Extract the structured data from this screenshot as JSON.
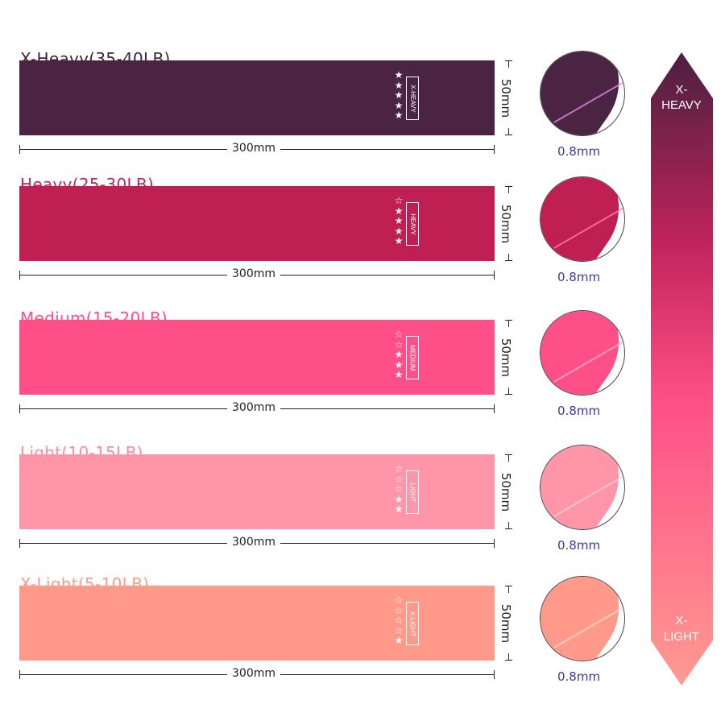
{
  "bands": [
    {
      "title": "X-Heavy(35-40LB)",
      "tag": "X-HEAVY",
      "stars_filled": 5,
      "stars_total": 5,
      "length": "300mm",
      "width": "50mm",
      "thickness": "0.8mm",
      "color": "#4a2442",
      "title_color": "#3d2238",
      "edge_color": "#e08ae0"
    },
    {
      "title": "Heavy(25-30LB)",
      "tag": "HEAVY",
      "stars_filled": 4,
      "stars_total": 5,
      "length": "300mm",
      "width": "50mm",
      "thickness": "0.8mm",
      "color": "#c01f53",
      "title_color": "#c0245a",
      "edge_color": "#ff7aa8"
    },
    {
      "title": "Medium(15-20LB)",
      "tag": "MEDIUM",
      "stars_filled": 3,
      "stars_total": 5,
      "length": "300mm",
      "width": "50mm",
      "thickness": "0.8mm",
      "color": "#ff4f88",
      "title_color": "#ff4f88",
      "edge_color": "#ffb0cc"
    },
    {
      "title": "Light(10-15LB)",
      "tag": "LIGHT",
      "stars_filled": 2,
      "stars_total": 5,
      "length": "300mm",
      "width": "50mm",
      "thickness": "0.8mm",
      "color": "#ff95a8",
      "title_color": "#ff8aa0",
      "edge_color": "#ffd0da"
    },
    {
      "title": "X-Light(5-10LB)",
      "tag": "X-LIGHT",
      "stars_filled": 1,
      "stars_total": 5,
      "length": "300mm",
      "width": "50mm",
      "thickness": "0.8mm",
      "color": "#ff9a8b",
      "title_color": "#ff9a88",
      "edge_color": "#ffd6d0"
    }
  ],
  "scale": {
    "top_label": "X-\nHEAVY",
    "top_line1": "X-",
    "top_line2": "HEAVY",
    "bottom_line1": "X-",
    "bottom_line2": "LIGHT",
    "gradient": [
      "#4a2040",
      "#c0245a",
      "#ff4f88",
      "#ff9a90"
    ]
  }
}
